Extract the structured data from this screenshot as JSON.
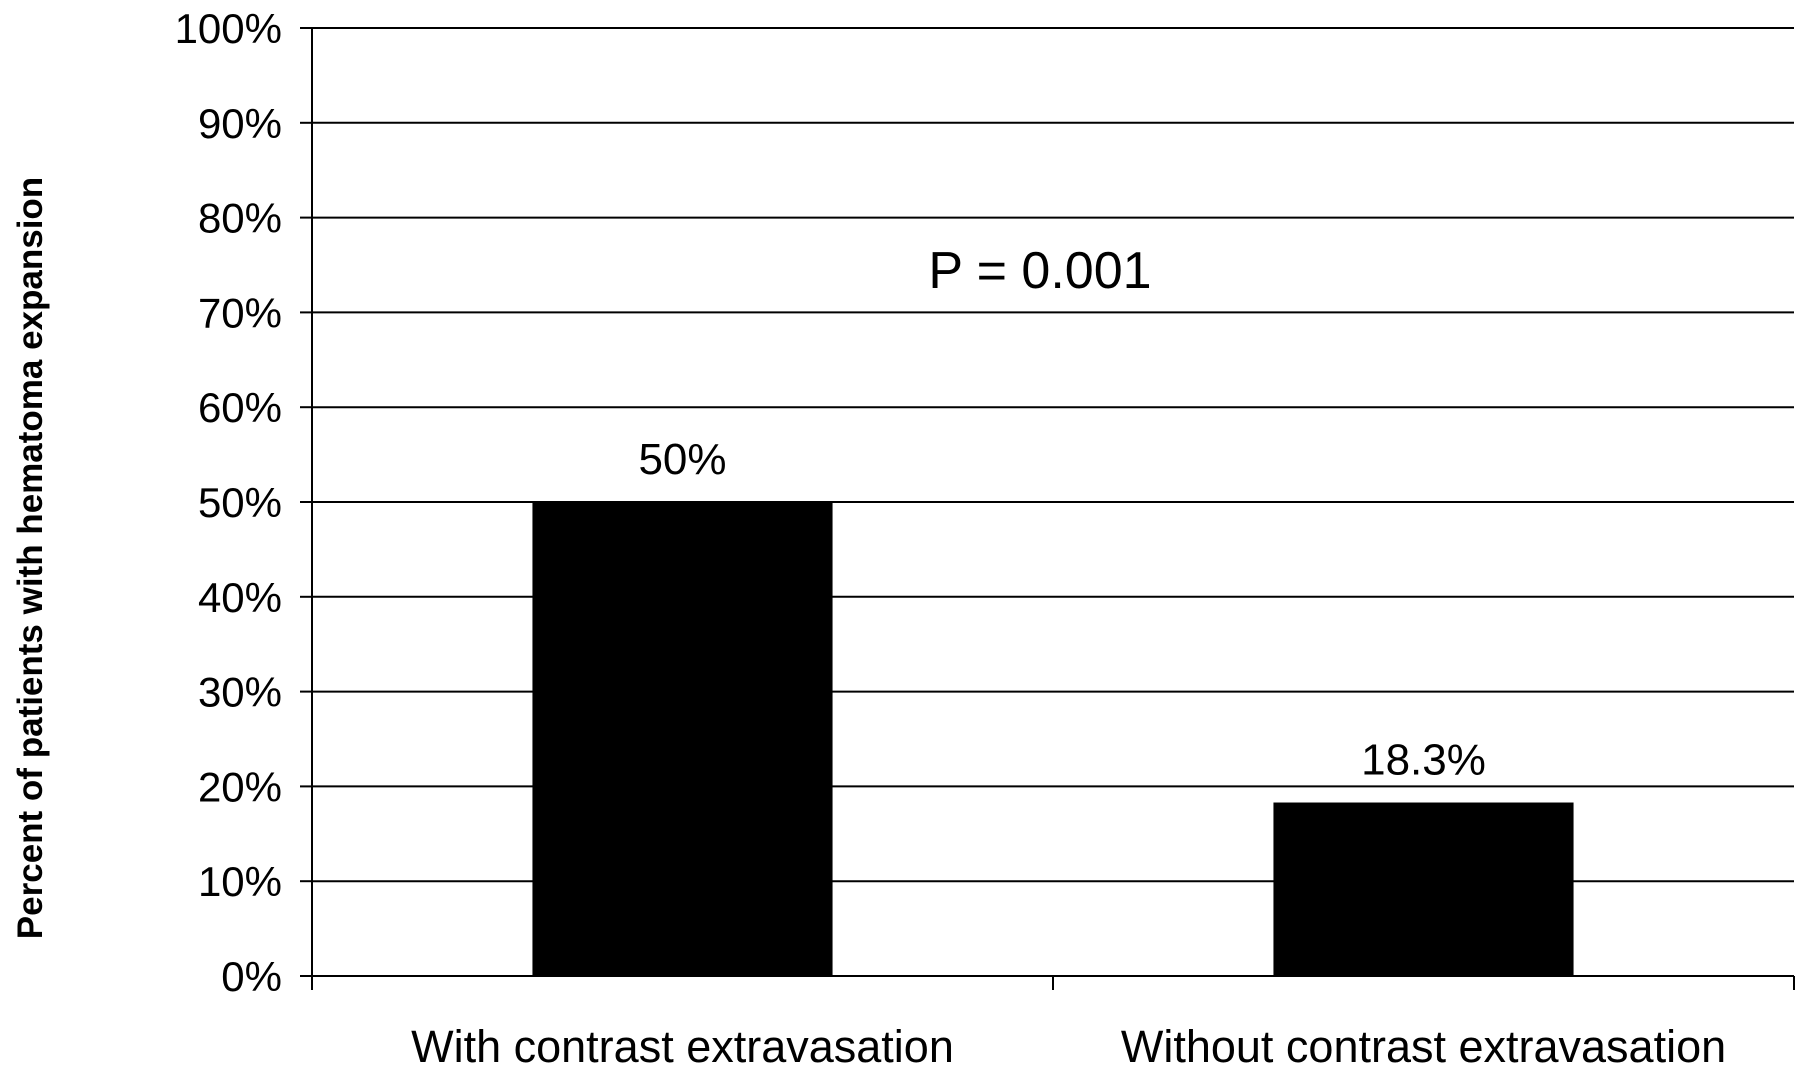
{
  "chart_data": {
    "type": "bar",
    "categories": [
      "With contrast extravasation",
      "Without contrast extravasation"
    ],
    "values": [
      50,
      18.3
    ],
    "data_labels": [
      "50%",
      "18.3%"
    ],
    "ylabel": "Percent of patients with hematoma expansion",
    "xlabel": "",
    "ylim": [
      0,
      100
    ],
    "y_ticks": [
      0,
      10,
      20,
      30,
      40,
      50,
      60,
      70,
      80,
      90,
      100
    ],
    "y_tick_labels": [
      "0%",
      "10%",
      "20%",
      "30%",
      "40%",
      "50%",
      "60%",
      "70%",
      "80%",
      "90%",
      "100%"
    ],
    "annotation": "P = 0.001",
    "grid": true,
    "legend": "none",
    "bar_color": "#000000"
  }
}
